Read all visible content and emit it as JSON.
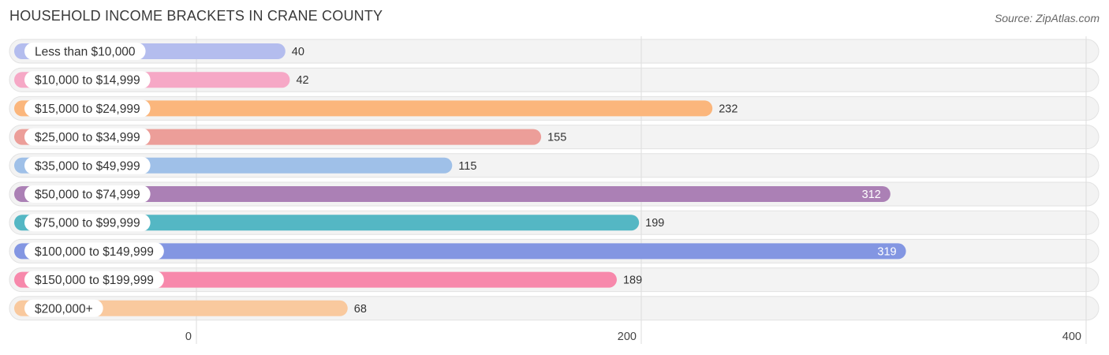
{
  "title": "HOUSEHOLD INCOME BRACKETS IN CRANE COUNTY",
  "source": "Source: ZipAtlas.com",
  "chart_data": {
    "type": "bar",
    "orientation": "horizontal",
    "title": "HOUSEHOLD INCOME BRACKETS IN CRANE COUNTY",
    "xlabel": "",
    "ylabel": "",
    "xlim": [
      0,
      400
    ],
    "xticks": [
      0,
      200,
      400
    ],
    "grid": true,
    "categories": [
      "Less than $10,000",
      "$10,000 to $14,999",
      "$15,000 to $24,999",
      "$25,000 to $34,999",
      "$35,000 to $49,999",
      "$50,000 to $74,999",
      "$75,000 to $99,999",
      "$100,000 to $149,999",
      "$150,000 to $199,999",
      "$200,000+"
    ],
    "values": [
      40,
      42,
      232,
      155,
      115,
      312,
      199,
      319,
      189,
      68
    ],
    "colors": [
      "#b4bdee",
      "#f6a8c6",
      "#fbb67c",
      "#ec9e99",
      "#9fc0e8",
      "#ab80b5",
      "#54b7c4",
      "#8396e2",
      "#f788ab",
      "#f9c99e"
    ]
  }
}
